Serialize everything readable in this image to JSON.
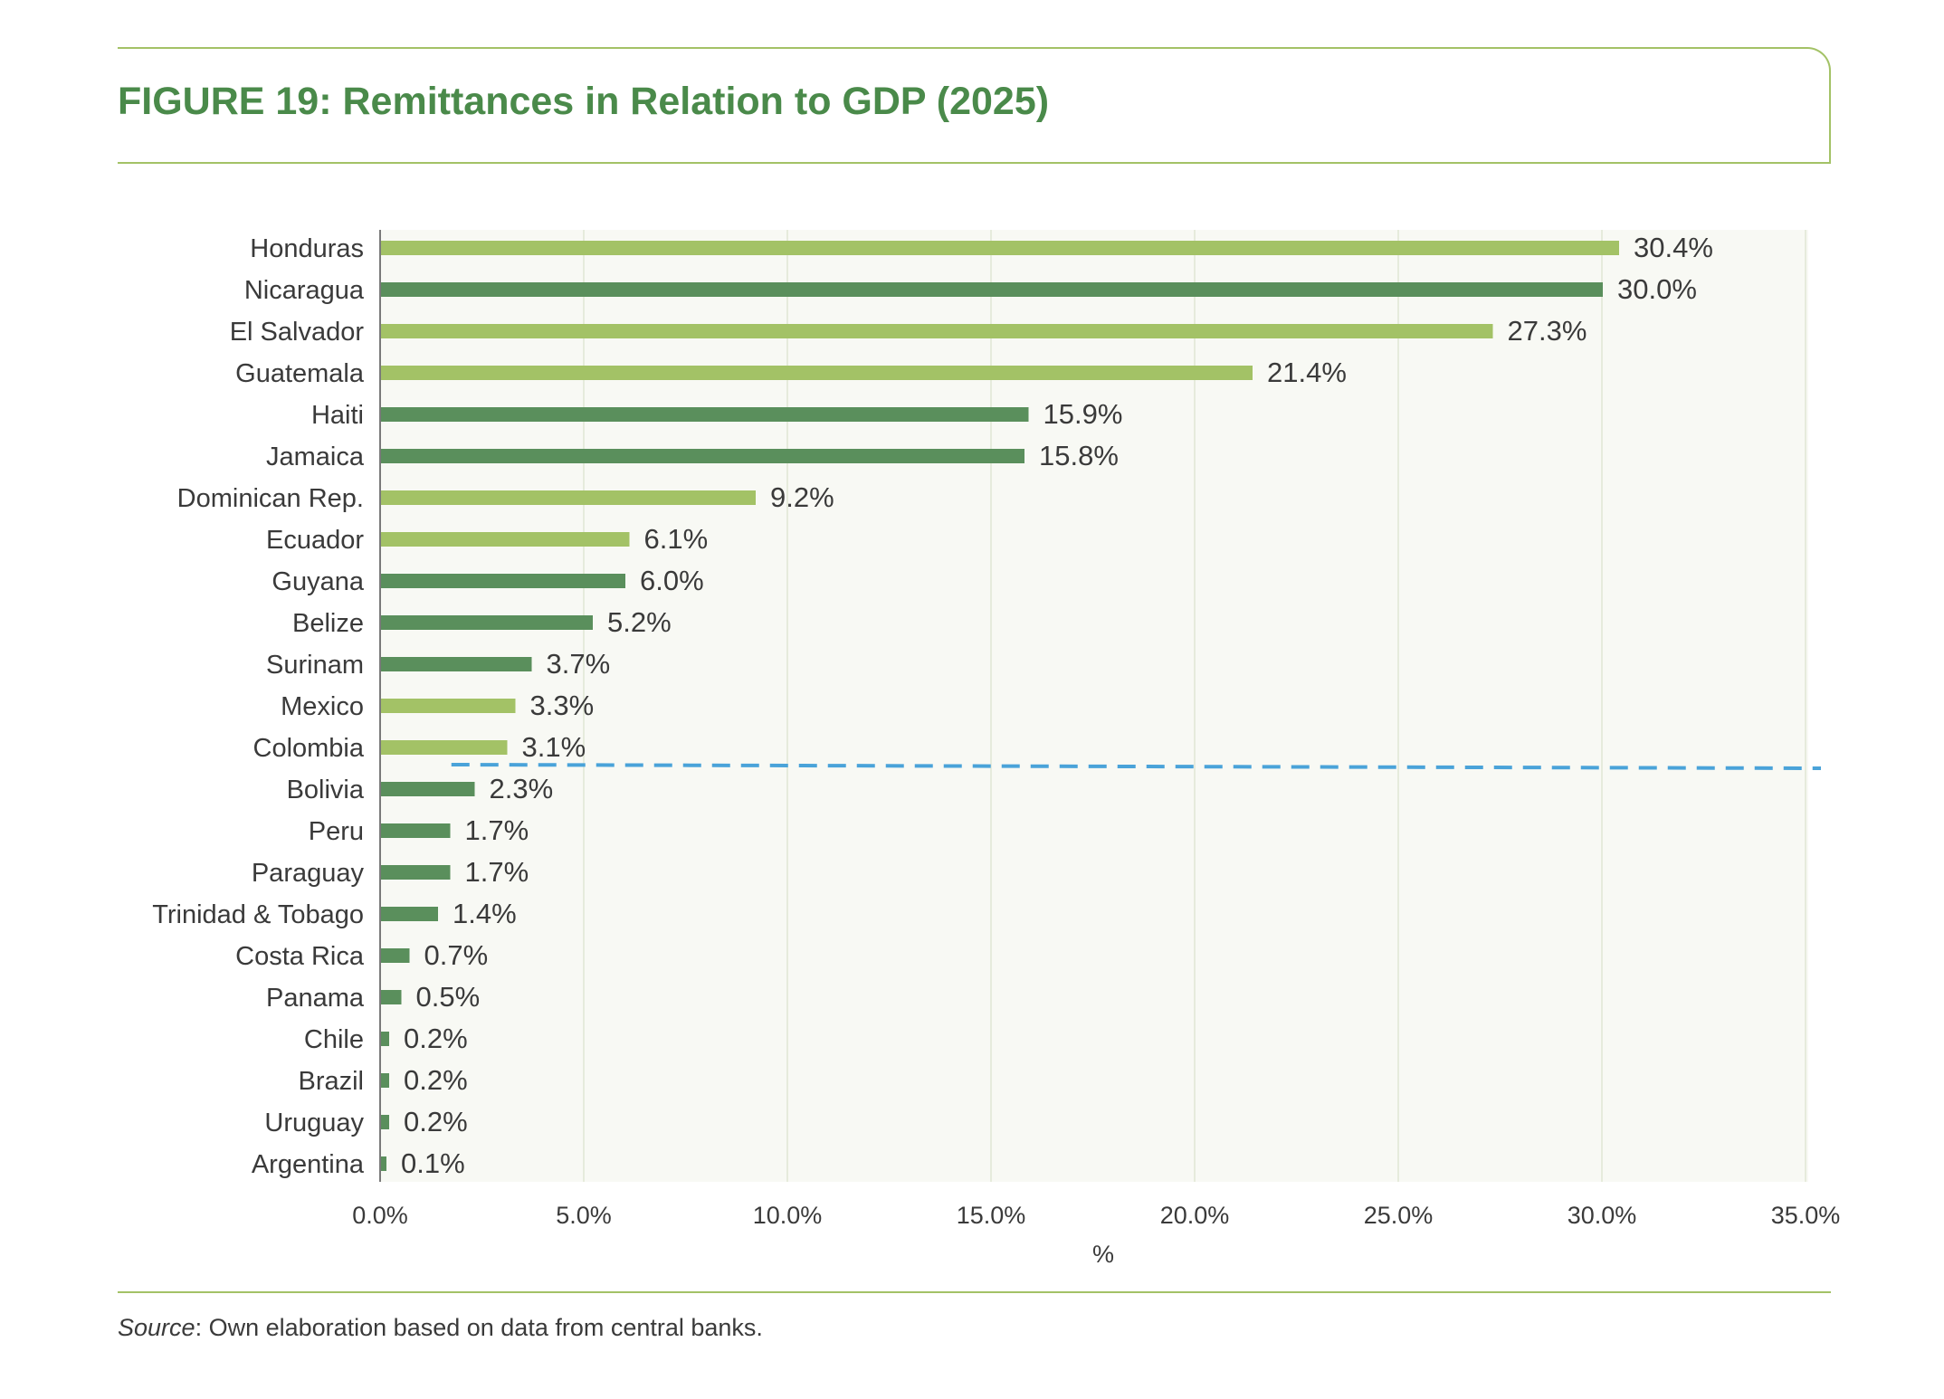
{
  "figure": {
    "title": "FIGURE 19: Remittances in Relation to GDP (2025)",
    "source_label": "Source",
    "source_text": ": Own elaboration based on data from central banks."
  },
  "colors": {
    "dark_green": "#5a8f5c",
    "light_green": "#a3c266",
    "reference_line": "#4aa3d9",
    "rule": "#a3c266",
    "title": "#4a8a4a"
  },
  "chart_data": {
    "type": "bar",
    "orientation": "horizontal",
    "title": "FIGURE 19: Remittances in Relation to GDP (2025)",
    "xlabel": "%",
    "ylabel": "",
    "xlim": [
      0,
      35
    ],
    "x_ticks": [
      "0.0%",
      "5.0%",
      "10.0%",
      "15.0%",
      "20.0%",
      "25.0%",
      "30.0%",
      "35.0%"
    ],
    "grid": "vertical",
    "categories": [
      "Honduras",
      "Nicaragua",
      "El Salvador",
      "Guatemala",
      "Haiti",
      "Jamaica",
      "Dominican Rep.",
      "Ecuador",
      "Guyana",
      "Belize",
      "Surinam",
      "Mexico",
      "Colombia",
      "Bolivia",
      "Peru",
      "Paraguay",
      "Trinidad & Tobago",
      "Costa Rica",
      "Panama",
      "Chile",
      "Brazil",
      "Uruguay",
      "Argentina"
    ],
    "values": [
      30.4,
      30.0,
      27.3,
      21.4,
      15.9,
      15.8,
      9.2,
      6.1,
      6.0,
      5.2,
      3.7,
      3.3,
      3.1,
      2.3,
      1.7,
      1.7,
      1.4,
      0.7,
      0.5,
      0.2,
      0.2,
      0.2,
      0.1
    ],
    "labels": [
      "30.4%",
      "30.0%",
      "27.3%",
      "21.4%",
      "15.9%",
      "15.8%",
      "9.2%",
      "6.1%",
      "6.0%",
      "5.2%",
      "3.7%",
      "3.3%",
      "3.1%",
      "2.3%",
      "1.7%",
      "1.7%",
      "1.4%",
      "0.7%",
      "0.5%",
      "0.2%",
      "0.2%",
      "0.2%",
      "0.1%"
    ],
    "bar_colors": [
      "light",
      "dark",
      "light",
      "light",
      "dark",
      "dark",
      "light",
      "light",
      "dark",
      "dark",
      "dark",
      "light",
      "light",
      "dark",
      "dark",
      "dark",
      "dark",
      "dark",
      "dark",
      "dark",
      "dark",
      "dark",
      "dark"
    ],
    "reference_line": {
      "style": "dashed",
      "between": [
        "Colombia",
        "Bolivia"
      ]
    }
  }
}
